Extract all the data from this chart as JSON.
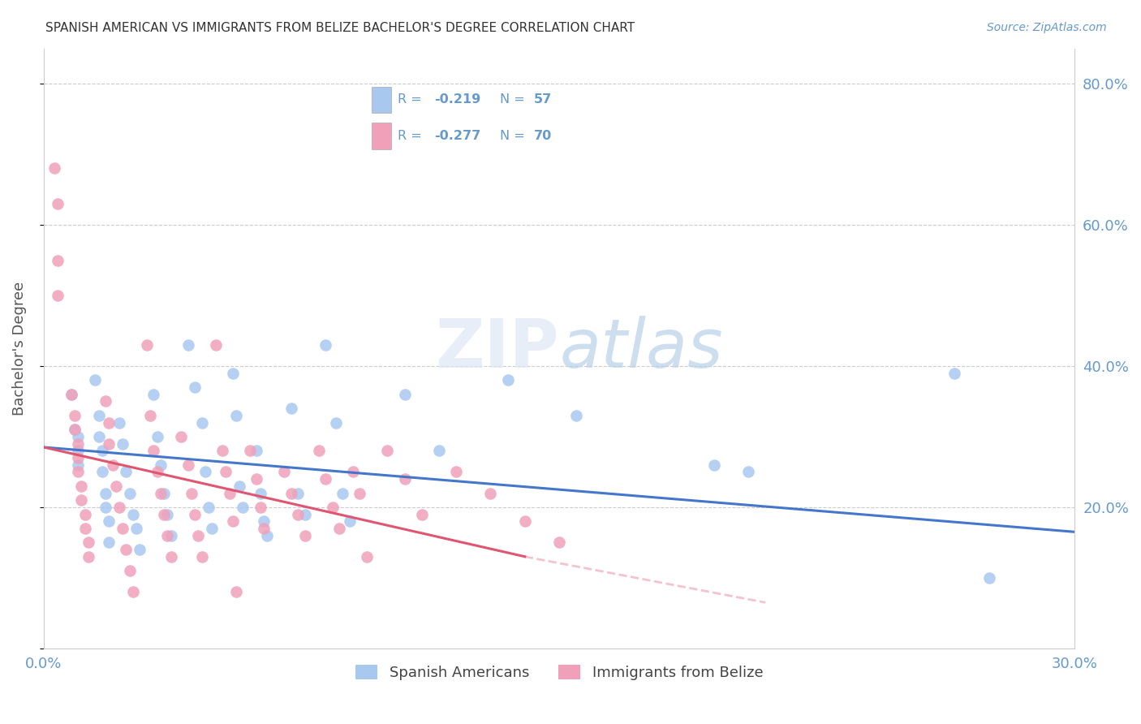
{
  "title": "SPANISH AMERICAN VS IMMIGRANTS FROM BELIZE BACHELOR'S DEGREE CORRELATION CHART",
  "source": "Source: ZipAtlas.com",
  "ylabel": "Bachelor's Degree",
  "xlim": [
    0.0,
    0.3
  ],
  "ylim": [
    0.0,
    0.85
  ],
  "xtick_positions": [
    0.0,
    0.05,
    0.1,
    0.15,
    0.2,
    0.25,
    0.3
  ],
  "xtick_labels": [
    "0.0%",
    "",
    "",
    "",
    "",
    "",
    "30.0%"
  ],
  "ytick_positions": [
    0.0,
    0.2,
    0.4,
    0.6,
    0.8
  ],
  "ytick_labels_right": [
    "",
    "20.0%",
    "40.0%",
    "60.0%",
    "80.0%"
  ],
  "grid_color": "#cccccc",
  "background_color": "#ffffff",
  "watermark_zip": "ZIP",
  "watermark_atlas": "atlas",
  "blue_color": "#a8c8f0",
  "pink_color": "#f0a0b8",
  "blue_line_color": "#4477cc",
  "pink_line_color": "#e05570",
  "axis_color": "#6699cc",
  "title_color": "#333333",
  "legend_text_color": "#6699cc",
  "blue_scatter": [
    [
      0.008,
      0.36
    ],
    [
      0.009,
      0.31
    ],
    [
      0.01,
      0.3
    ],
    [
      0.01,
      0.28
    ],
    [
      0.01,
      0.26
    ],
    [
      0.015,
      0.38
    ],
    [
      0.016,
      0.33
    ],
    [
      0.016,
      0.3
    ],
    [
      0.017,
      0.28
    ],
    [
      0.017,
      0.25
    ],
    [
      0.018,
      0.22
    ],
    [
      0.018,
      0.2
    ],
    [
      0.019,
      0.18
    ],
    [
      0.019,
      0.15
    ],
    [
      0.022,
      0.32
    ],
    [
      0.023,
      0.29
    ],
    [
      0.024,
      0.25
    ],
    [
      0.025,
      0.22
    ],
    [
      0.026,
      0.19
    ],
    [
      0.027,
      0.17
    ],
    [
      0.028,
      0.14
    ],
    [
      0.032,
      0.36
    ],
    [
      0.033,
      0.3
    ],
    [
      0.034,
      0.26
    ],
    [
      0.035,
      0.22
    ],
    [
      0.036,
      0.19
    ],
    [
      0.037,
      0.16
    ],
    [
      0.042,
      0.43
    ],
    [
      0.044,
      0.37
    ],
    [
      0.046,
      0.32
    ],
    [
      0.047,
      0.25
    ],
    [
      0.048,
      0.2
    ],
    [
      0.049,
      0.17
    ],
    [
      0.055,
      0.39
    ],
    [
      0.056,
      0.33
    ],
    [
      0.057,
      0.23
    ],
    [
      0.058,
      0.2
    ],
    [
      0.062,
      0.28
    ],
    [
      0.063,
      0.22
    ],
    [
      0.064,
      0.18
    ],
    [
      0.065,
      0.16
    ],
    [
      0.072,
      0.34
    ],
    [
      0.074,
      0.22
    ],
    [
      0.076,
      0.19
    ],
    [
      0.082,
      0.43
    ],
    [
      0.085,
      0.32
    ],
    [
      0.087,
      0.22
    ],
    [
      0.089,
      0.18
    ],
    [
      0.105,
      0.36
    ],
    [
      0.115,
      0.28
    ],
    [
      0.135,
      0.38
    ],
    [
      0.155,
      0.33
    ],
    [
      0.195,
      0.26
    ],
    [
      0.205,
      0.25
    ],
    [
      0.265,
      0.39
    ],
    [
      0.275,
      0.1
    ]
  ],
  "pink_scatter": [
    [
      0.003,
      0.68
    ],
    [
      0.004,
      0.63
    ],
    [
      0.004,
      0.55
    ],
    [
      0.004,
      0.5
    ],
    [
      0.008,
      0.36
    ],
    [
      0.009,
      0.33
    ],
    [
      0.009,
      0.31
    ],
    [
      0.01,
      0.29
    ],
    [
      0.01,
      0.27
    ],
    [
      0.01,
      0.25
    ],
    [
      0.011,
      0.23
    ],
    [
      0.011,
      0.21
    ],
    [
      0.012,
      0.19
    ],
    [
      0.012,
      0.17
    ],
    [
      0.013,
      0.15
    ],
    [
      0.013,
      0.13
    ],
    [
      0.018,
      0.35
    ],
    [
      0.019,
      0.32
    ],
    [
      0.019,
      0.29
    ],
    [
      0.02,
      0.26
    ],
    [
      0.021,
      0.23
    ],
    [
      0.022,
      0.2
    ],
    [
      0.023,
      0.17
    ],
    [
      0.024,
      0.14
    ],
    [
      0.025,
      0.11
    ],
    [
      0.026,
      0.08
    ],
    [
      0.03,
      0.43
    ],
    [
      0.031,
      0.33
    ],
    [
      0.032,
      0.28
    ],
    [
      0.033,
      0.25
    ],
    [
      0.034,
      0.22
    ],
    [
      0.035,
      0.19
    ],
    [
      0.036,
      0.16
    ],
    [
      0.037,
      0.13
    ],
    [
      0.04,
      0.3
    ],
    [
      0.042,
      0.26
    ],
    [
      0.043,
      0.22
    ],
    [
      0.044,
      0.19
    ],
    [
      0.045,
      0.16
    ],
    [
      0.046,
      0.13
    ],
    [
      0.05,
      0.43
    ],
    [
      0.052,
      0.28
    ],
    [
      0.053,
      0.25
    ],
    [
      0.054,
      0.22
    ],
    [
      0.055,
      0.18
    ],
    [
      0.056,
      0.08
    ],
    [
      0.06,
      0.28
    ],
    [
      0.062,
      0.24
    ],
    [
      0.063,
      0.2
    ],
    [
      0.064,
      0.17
    ],
    [
      0.07,
      0.25
    ],
    [
      0.072,
      0.22
    ],
    [
      0.074,
      0.19
    ],
    [
      0.076,
      0.16
    ],
    [
      0.08,
      0.28
    ],
    [
      0.082,
      0.24
    ],
    [
      0.084,
      0.2
    ],
    [
      0.086,
      0.17
    ],
    [
      0.09,
      0.25
    ],
    [
      0.092,
      0.22
    ],
    [
      0.094,
      0.13
    ],
    [
      0.1,
      0.28
    ],
    [
      0.105,
      0.24
    ],
    [
      0.11,
      0.19
    ],
    [
      0.12,
      0.25
    ],
    [
      0.13,
      0.22
    ],
    [
      0.14,
      0.18
    ],
    [
      0.15,
      0.15
    ]
  ],
  "blue_trendline": [
    [
      0.0,
      0.285
    ],
    [
      0.3,
      0.165
    ]
  ],
  "pink_trendline_solid": [
    [
      0.0,
      0.285
    ],
    [
      0.14,
      0.13
    ]
  ],
  "pink_trendline_dash": [
    [
      0.14,
      0.13
    ],
    [
      0.21,
      0.065
    ]
  ]
}
